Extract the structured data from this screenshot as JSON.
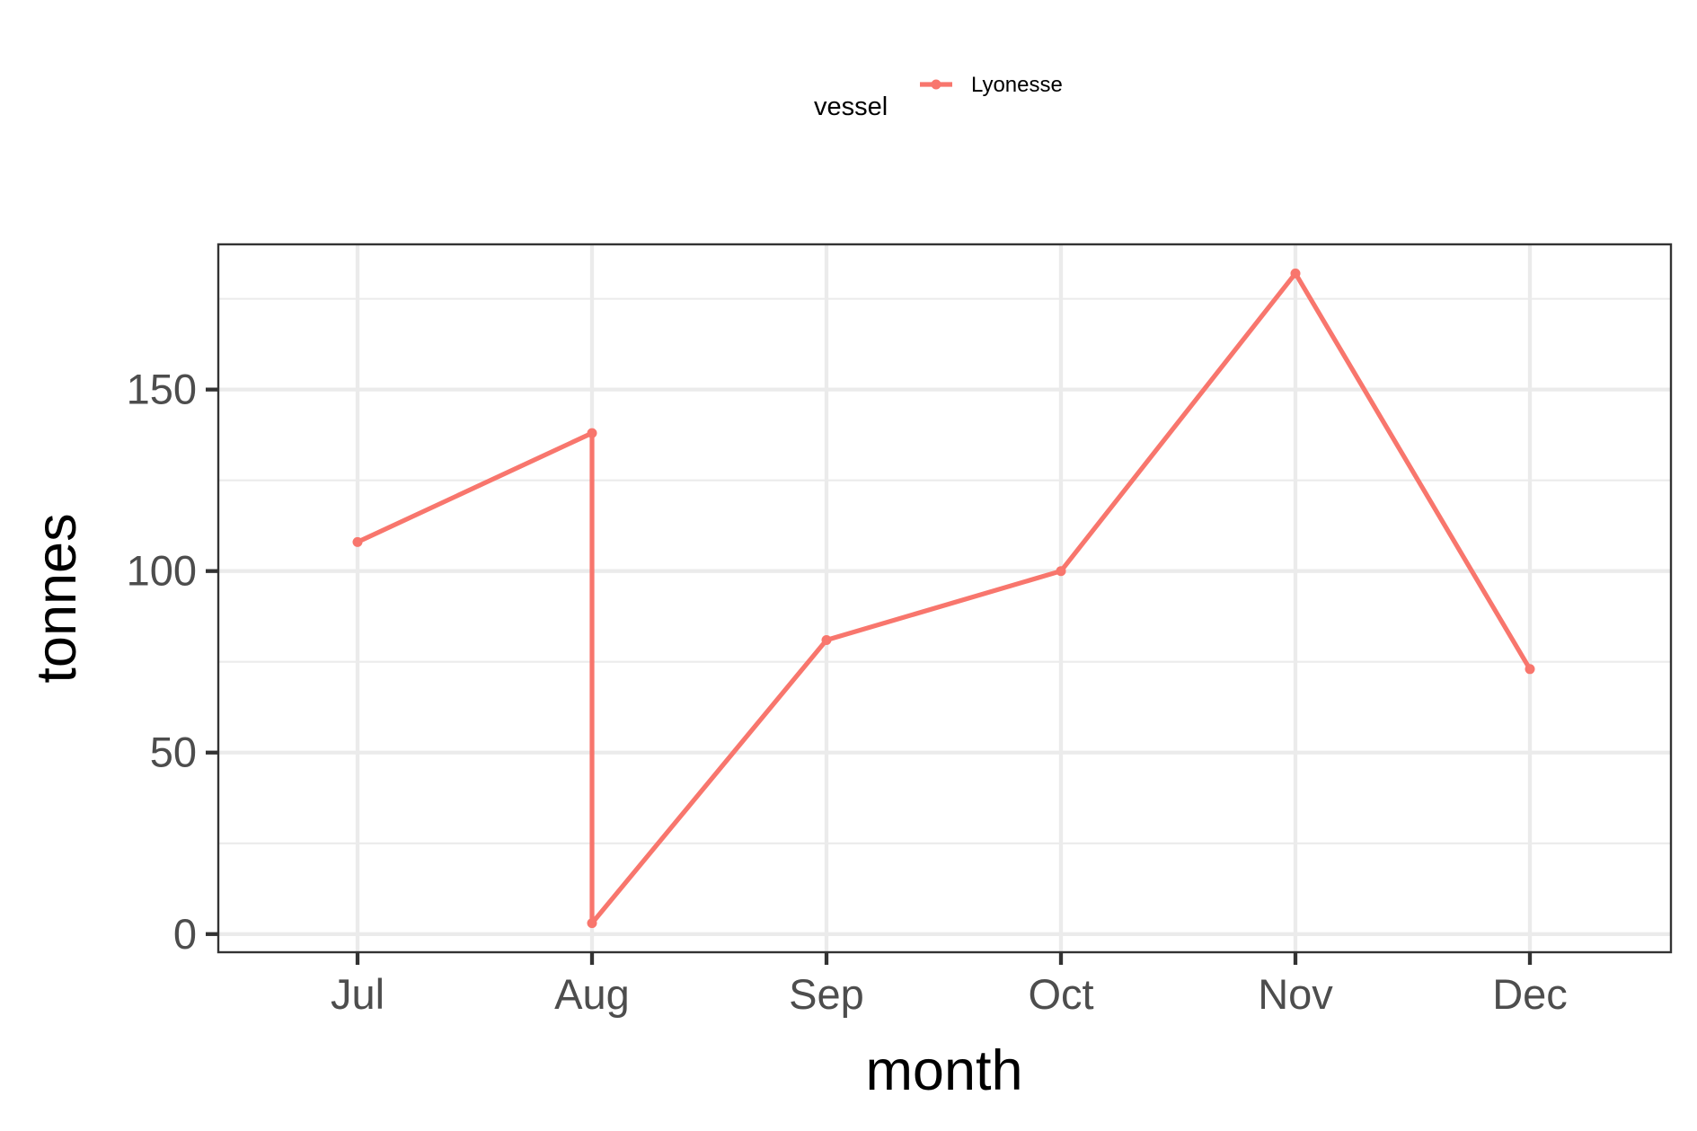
{
  "chart_data": {
    "type": "line",
    "xlabel": "month",
    "ylabel": "tonnes",
    "categories": [
      "Jul",
      "Aug",
      "Sep",
      "Oct",
      "Nov",
      "Dec"
    ],
    "ylim": [
      -5,
      190
    ],
    "yticks": [
      0,
      50,
      100,
      150
    ],
    "grid": true,
    "legend": {
      "title": "vessel",
      "placement": "top"
    },
    "series": [
      {
        "name": "Lyonesse",
        "color": "#F8766D",
        "points": [
          {
            "x": "Jul",
            "y": 108
          },
          {
            "x": "Aug",
            "y": 138
          },
          {
            "x": "Aug",
            "y": 3
          },
          {
            "x": "Sep",
            "y": 81
          },
          {
            "x": "Oct",
            "y": 100
          },
          {
            "x": "Nov",
            "y": 182
          },
          {
            "x": "Dec",
            "y": 73
          }
        ]
      }
    ]
  }
}
